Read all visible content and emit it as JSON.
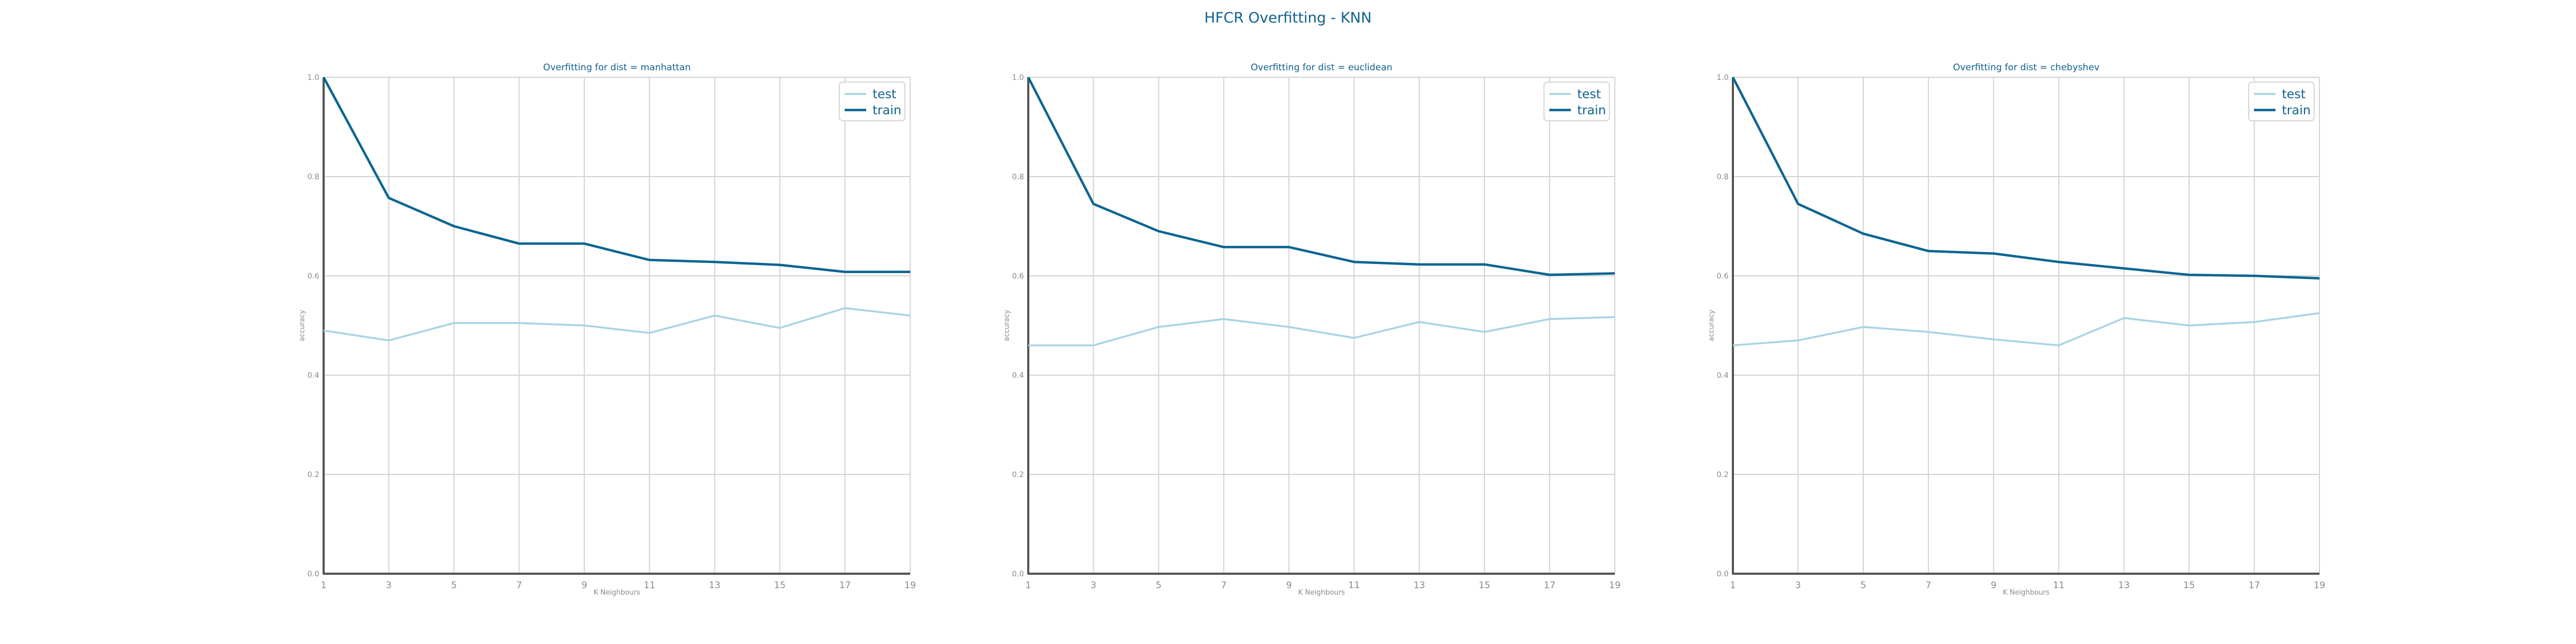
{
  "figure": {
    "title": "HFCR Overfitting - KNN"
  },
  "colors": {
    "title": "#11618f",
    "train": "#0b6591",
    "test": "#a9d3e3",
    "grid": "#d3d3d3",
    "axis": "#555555",
    "tick_label": "#8a8a8a"
  },
  "chart_data": [
    {
      "type": "line",
      "title": "Overfitting for dist = manhattan",
      "xlabel": "K Neighbours",
      "ylabel": "accuracy",
      "x": [
        1,
        3,
        5,
        7,
        9,
        11,
        13,
        15,
        17,
        19
      ],
      "xlim": [
        1,
        19
      ],
      "ylim": [
        0.0,
        1.0
      ],
      "yticks": [
        "0.0",
        "0.2",
        "0.4",
        "0.6",
        "0.8",
        "1.0"
      ],
      "grid": true,
      "legend": "top-right",
      "series": [
        {
          "name": "test",
          "values": [
            0.49,
            0.47,
            0.505,
            0.505,
            0.5,
            0.485,
            0.52,
            0.495,
            0.535,
            0.52
          ]
        },
        {
          "name": "train",
          "values": [
            1.0,
            0.757,
            0.7,
            0.665,
            0.665,
            0.632,
            0.628,
            0.622,
            0.608,
            0.608
          ]
        }
      ]
    },
    {
      "type": "line",
      "title": "Overfitting for dist = euclidean",
      "xlabel": "K Neighbours",
      "ylabel": "accuracy",
      "x": [
        1,
        3,
        5,
        7,
        9,
        11,
        13,
        15,
        17,
        19
      ],
      "xlim": [
        1,
        19
      ],
      "ylim": [
        0.0,
        1.0
      ],
      "yticks": [
        "0.0",
        "0.2",
        "0.4",
        "0.6",
        "0.8",
        "1.0"
      ],
      "grid": true,
      "legend": "top-right",
      "series": [
        {
          "name": "test",
          "values": [
            0.46,
            0.46,
            0.497,
            0.513,
            0.497,
            0.475,
            0.507,
            0.487,
            0.513,
            0.517
          ]
        },
        {
          "name": "train",
          "values": [
            1.0,
            0.745,
            0.69,
            0.658,
            0.658,
            0.628,
            0.623,
            0.623,
            0.602,
            0.605
          ]
        }
      ]
    },
    {
      "type": "line",
      "title": "Overfitting for dist = chebyshev",
      "xlabel": "K Neighbours",
      "ylabel": "accuracy",
      "x": [
        1,
        3,
        5,
        7,
        9,
        11,
        13,
        15,
        17,
        19
      ],
      "xlim": [
        1,
        19
      ],
      "ylim": [
        0.0,
        1.0
      ],
      "yticks": [
        "0.0",
        "0.2",
        "0.4",
        "0.6",
        "0.8",
        "1.0"
      ],
      "grid": true,
      "legend": "top-right",
      "series": [
        {
          "name": "test",
          "values": [
            0.46,
            0.47,
            0.497,
            0.487,
            0.472,
            0.46,
            0.515,
            0.5,
            0.507,
            0.525
          ]
        },
        {
          "name": "train",
          "values": [
            1.0,
            0.745,
            0.685,
            0.65,
            0.645,
            0.628,
            0.615,
            0.602,
            0.6,
            0.595
          ]
        }
      ]
    }
  ]
}
